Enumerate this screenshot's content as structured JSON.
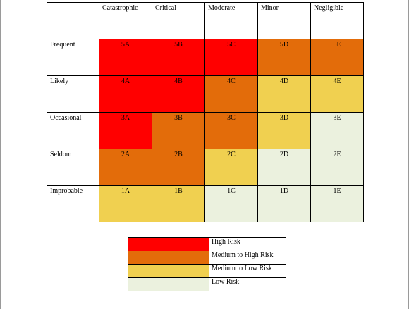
{
  "colors": {
    "high": "#ff0000",
    "medium_high": "#e36c0a",
    "medium_low": "#f0d050",
    "low": "#ebf1de"
  },
  "matrix": {
    "columns": [
      "Catastrophic",
      "Critical",
      "Moderate",
      "Minor",
      "Negligible"
    ],
    "rows": [
      {
        "label": "Frequent",
        "cells": [
          {
            "code": "5A",
            "level": "high"
          },
          {
            "code": "5B",
            "level": "high"
          },
          {
            "code": "5C",
            "level": "high"
          },
          {
            "code": "5D",
            "level": "medium_high"
          },
          {
            "code": "5E",
            "level": "medium_high"
          }
        ]
      },
      {
        "label": "Likely",
        "cells": [
          {
            "code": "4A",
            "level": "high"
          },
          {
            "code": "4B",
            "level": "high"
          },
          {
            "code": "4C",
            "level": "medium_high"
          },
          {
            "code": "4D",
            "level": "medium_low"
          },
          {
            "code": "4E",
            "level": "medium_low"
          }
        ]
      },
      {
        "label": "Occasional",
        "cells": [
          {
            "code": "3A",
            "level": "high"
          },
          {
            "code": "3B",
            "level": "medium_high"
          },
          {
            "code": "3C",
            "level": "medium_high"
          },
          {
            "code": "3D",
            "level": "medium_low"
          },
          {
            "code": "3E",
            "level": "low"
          }
        ]
      },
      {
        "label": "Seldom",
        "cells": [
          {
            "code": "2A",
            "level": "medium_high"
          },
          {
            "code": "2B",
            "level": "medium_high"
          },
          {
            "code": "2C",
            "level": "medium_low"
          },
          {
            "code": "2D",
            "level": "low"
          },
          {
            "code": "2E",
            "level": "low"
          }
        ]
      },
      {
        "label": "Improbable",
        "cells": [
          {
            "code": "1A",
            "level": "medium_low"
          },
          {
            "code": "1B",
            "level": "medium_low"
          },
          {
            "code": "1C",
            "level": "low"
          },
          {
            "code": "1D",
            "level": "low"
          },
          {
            "code": "1E",
            "level": "low"
          }
        ]
      }
    ]
  },
  "legend": [
    {
      "label": "High Risk",
      "level": "high"
    },
    {
      "label": "Medium to High Risk",
      "level": "medium_high"
    },
    {
      "label": "Medium to Low Risk",
      "level": "medium_low"
    },
    {
      "label": "Low Risk",
      "level": "low"
    }
  ]
}
